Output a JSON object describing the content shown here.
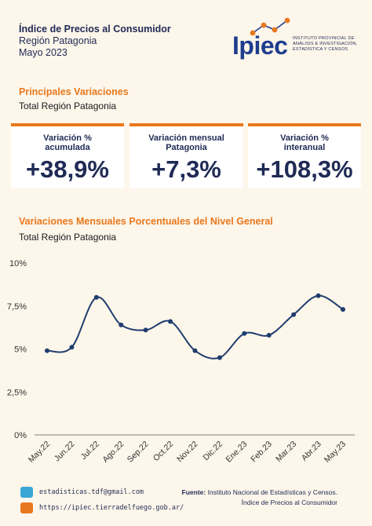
{
  "header": {
    "title": "Índice de Precios al Consumidor",
    "region": "Región Patagonia",
    "period": "Mayo 2023"
  },
  "logo": {
    "word": "Ipiec",
    "sub_lines": [
      "INSTITUTO PROVINCIAL DE",
      "ANÁLISIS E INVESTIGACIÓN,",
      "ESTADÍSTICA Y CENSOS"
    ]
  },
  "section1": {
    "title": "Principales Variaciones",
    "subtitle": "Total Región Patagonia"
  },
  "cards": [
    {
      "label_lines": [
        "Variación %",
        "acumulada"
      ],
      "value": "+38,9%"
    },
    {
      "label_lines": [
        "Variación mensual",
        "Patagonia"
      ],
      "value": "+7,3%"
    },
    {
      "label_lines": [
        "Variación %",
        "interanual"
      ],
      "value": "+108,3%"
    }
  ],
  "section2": {
    "title": "Variaciones Mensuales Porcentuales del Nivel General",
    "subtitle": "Total Región Patagonia"
  },
  "chart_data": {
    "type": "line",
    "categories": [
      "May.22",
      "Jun.22",
      "Jul.22",
      "Ago.22",
      "Sep.22",
      "Oct.22",
      "Nov.22",
      "Dic.22",
      "Ene.23",
      "Feb.23",
      "Mar.23",
      "Abr.23",
      "May.23"
    ],
    "values": [
      4.9,
      5.1,
      8.0,
      6.4,
      6.1,
      6.6,
      4.9,
      4.5,
      5.9,
      5.8,
      7.0,
      8.1,
      7.3
    ],
    "yticks": [
      "0%",
      "2,5%",
      "5%",
      "7,5%",
      "10%"
    ],
    "ylim": [
      0,
      10
    ],
    "grid": false,
    "line_color": "#1f3d6e"
  },
  "footer": {
    "email": "estadisticas.tdf@gmail.com",
    "web": "https://ipiec.tierradelfuego.gob.ar/",
    "source_label": "Fuente:",
    "source_text": "Instituto Nacional de Estadísticas y Censos.",
    "source_line2": "Índice de Precios al Consumidor"
  }
}
